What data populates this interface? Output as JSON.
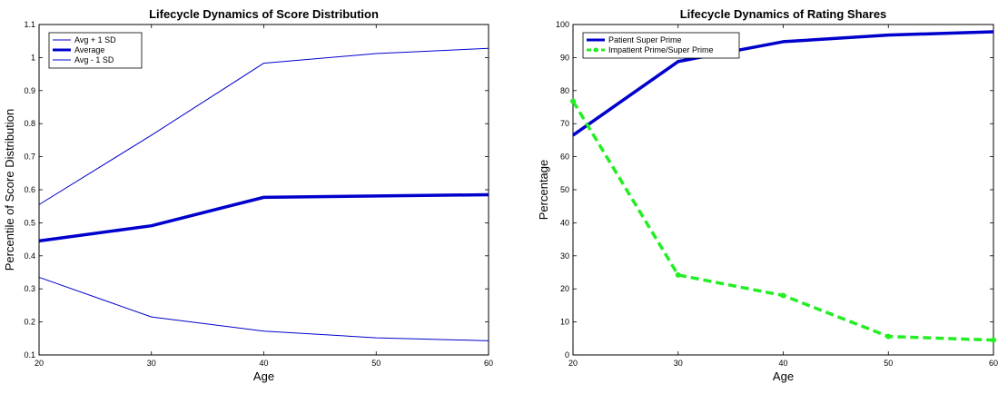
{
  "chart_data": [
    {
      "type": "line",
      "title": "Lifecycle Dynamics of Score Distribution",
      "xlabel": "Age",
      "ylabel": "Percentile of Score Distribution",
      "xlim": [
        20,
        60
      ],
      "ylim": [
        0.1,
        1.1
      ],
      "xticks": [
        20,
        30,
        40,
        50,
        60
      ],
      "xtick_labels": [
        "20",
        "30",
        "40",
        "50",
        "60"
      ],
      "yticks": [
        0.1,
        0.2,
        0.3,
        0.4,
        0.5,
        0.6,
        0.7,
        0.8,
        0.9,
        1.0,
        1.1
      ],
      "ytick_labels": [
        "0.1",
        "0.2",
        "0.3",
        "0.4",
        "0.5",
        "0.6",
        "0.7",
        "0.8",
        "0.9",
        "1",
        "1.1"
      ],
      "grid": false,
      "legend_position": "top-left",
      "x": [
        20,
        30,
        40,
        50,
        60
      ],
      "series": [
        {
          "name": "Avg + 1 SD",
          "values": [
            0.555,
            0.765,
            0.983,
            1.012,
            1.028
          ],
          "color": "#0000cc",
          "width": 1,
          "dash": "",
          "markers": false
        },
        {
          "name": "Average",
          "values": [
            0.445,
            0.491,
            0.577,
            0.581,
            0.585
          ],
          "color": "#0000cc",
          "width": 3.5,
          "dash": "",
          "markers": false
        },
        {
          "name": "Avg - 1 SD",
          "values": [
            0.335,
            0.215,
            0.172,
            0.152,
            0.143
          ],
          "color": "#0000cc",
          "width": 1,
          "dash": "",
          "markers": false
        }
      ]
    },
    {
      "type": "line",
      "title": "Lifecycle Dynamics of Rating Shares",
      "xlabel": "Age",
      "ylabel": "Percentage",
      "xlim": [
        20,
        60
      ],
      "ylim": [
        0,
        100
      ],
      "xticks": [
        20,
        30,
        40,
        50,
        60
      ],
      "xtick_labels": [
        "20",
        "30",
        "40",
        "50",
        "60"
      ],
      "yticks": [
        0,
        10,
        20,
        30,
        40,
        50,
        60,
        70,
        80,
        90,
        100
      ],
      "ytick_labels": [
        "0",
        "10",
        "20",
        "30",
        "40",
        "50",
        "60",
        "70",
        "80",
        "90",
        "100"
      ],
      "grid": false,
      "legend_position": "top-left",
      "x": [
        20,
        30,
        40,
        50,
        60
      ],
      "series": [
        {
          "name": "Patient Super Prime",
          "values": [
            66.5,
            88.8,
            94.8,
            96.8,
            97.8
          ],
          "color": "#0000cc",
          "width": 3.5,
          "dash": "",
          "markers": false
        },
        {
          "name": "Impatient Prime/Super Prime",
          "values": [
            76.8,
            24.2,
            18.0,
            5.6,
            4.5
          ],
          "color": "#22ee22",
          "width": 3.5,
          "dash": "9,5",
          "markers": true
        }
      ]
    }
  ]
}
